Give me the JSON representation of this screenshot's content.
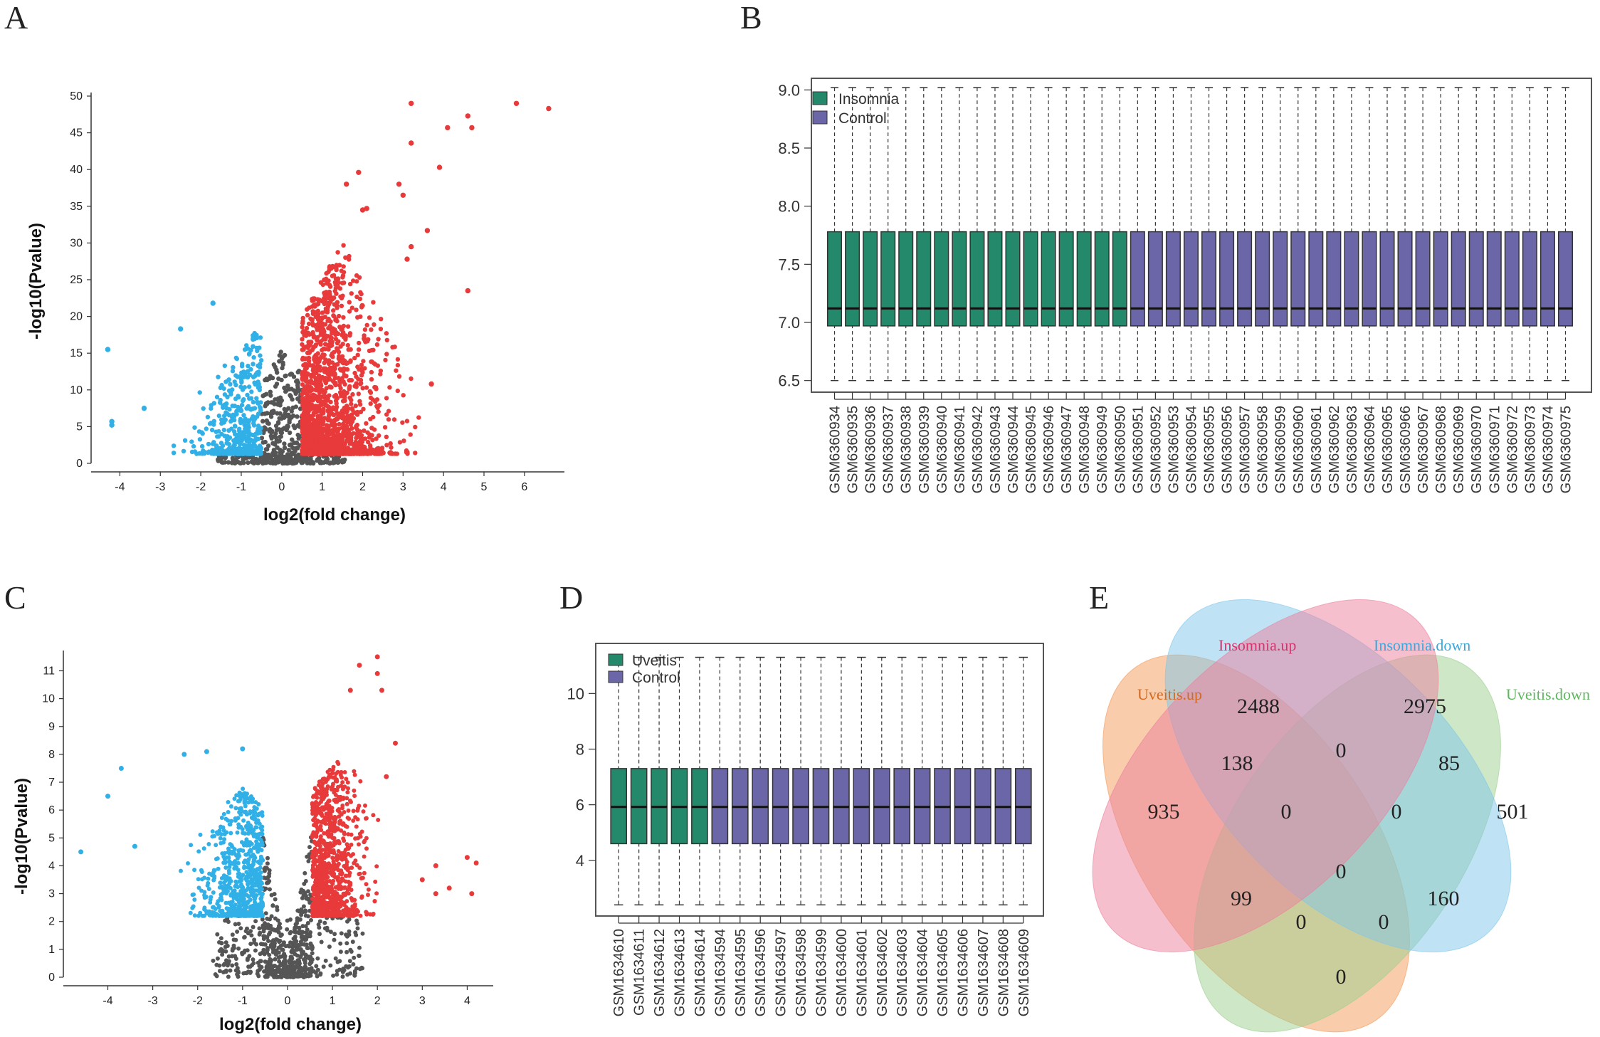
{
  "panel_labels": [
    "A",
    "B",
    "C",
    "D",
    "E"
  ],
  "colors": {
    "up": "#e83a3a",
    "down": "#30b0e6",
    "ns": "#555555",
    "insomnia_box": "#23896a",
    "control_box": "#6b66a8",
    "uveitis_box": "#23896a"
  },
  "chart_data": [
    {
      "id": "A",
      "type": "scatter",
      "title": "",
      "xlabel": "log2(fold change)",
      "ylabel": "-log10(Pvalue)",
      "xlim": [
        -4.5,
        6.9
      ],
      "ylim": [
        0,
        50
      ],
      "xticks": [
        "-4",
        "-3",
        "-2",
        "-1",
        "0",
        "1",
        "2",
        "3",
        "4",
        "5",
        "6"
      ],
      "yticks": [
        "0",
        "5",
        "10",
        "15",
        "20",
        "25",
        "30",
        "35",
        "40",
        "45",
        "50"
      ],
      "series": [
        {
          "name": "up",
          "points": [
            [
              3.2,
              49.0
            ],
            [
              5.8,
              49.0
            ],
            [
              6.6,
              48.3
            ],
            [
              4.6,
              47.3
            ],
            [
              4.7,
              45.7
            ],
            [
              4.1,
              45.7
            ],
            [
              3.2,
              43.6
            ],
            [
              3.9,
              40.3
            ],
            [
              1.9,
              39.6
            ],
            [
              1.6,
              38.0
            ],
            [
              2.9,
              38.0
            ],
            [
              3.0,
              36.5
            ],
            [
              2.1,
              34.7
            ],
            [
              2.0,
              34.5
            ],
            [
              3.6,
              31.7
            ],
            [
              3.2,
              29.5
            ],
            [
              3.1,
              27.8
            ],
            [
              4.6,
              23.5
            ],
            [
              3.7,
              10.8
            ]
          ]
        },
        {
          "name": "down",
          "points": [
            [
              -4.3,
              15.5
            ],
            [
              -4.2,
              5.7
            ],
            [
              -4.2,
              5.2
            ],
            [
              -3.4,
              7.5
            ],
            [
              -2.5,
              18.3
            ],
            [
              -1.7,
              21.8
            ]
          ]
        },
        {
          "name": "ns",
          "points": []
        }
      ]
    },
    {
      "id": "B",
      "type": "boxplot",
      "ylim": [
        6.4,
        9.1
      ],
      "yticks": [
        "6.5",
        "7.0",
        "7.5",
        "8.0",
        "8.5",
        "9.0"
      ],
      "legend": [
        {
          "name": "Insomnia"
        },
        {
          "name": "Control"
        }
      ],
      "stats": {
        "whisker_low": 6.5,
        "q1": 6.97,
        "median": 7.12,
        "q3": 7.78,
        "whisker_high": 9.02
      },
      "samples": [
        {
          "id": "GSM6360934",
          "group": "Insomnia"
        },
        {
          "id": "GSM6360935",
          "group": "Insomnia"
        },
        {
          "id": "GSM6360936",
          "group": "Insomnia"
        },
        {
          "id": "GSM6360937",
          "group": "Insomnia"
        },
        {
          "id": "GSM6360938",
          "group": "Insomnia"
        },
        {
          "id": "GSM6360939",
          "group": "Insomnia"
        },
        {
          "id": "GSM6360940",
          "group": "Insomnia"
        },
        {
          "id": "GSM6360941",
          "group": "Insomnia"
        },
        {
          "id": "GSM6360942",
          "group": "Insomnia"
        },
        {
          "id": "GSM6360943",
          "group": "Insomnia"
        },
        {
          "id": "GSM6360944",
          "group": "Insomnia"
        },
        {
          "id": "GSM6360945",
          "group": "Insomnia"
        },
        {
          "id": "GSM6360946",
          "group": "Insomnia"
        },
        {
          "id": "GSM6360947",
          "group": "Insomnia"
        },
        {
          "id": "GSM6360948",
          "group": "Insomnia"
        },
        {
          "id": "GSM6360949",
          "group": "Insomnia"
        },
        {
          "id": "GSM6360950",
          "group": "Insomnia"
        },
        {
          "id": "GSM6360951",
          "group": "Control"
        },
        {
          "id": "GSM6360952",
          "group": "Control"
        },
        {
          "id": "GSM6360953",
          "group": "Control"
        },
        {
          "id": "GSM6360954",
          "group": "Control"
        },
        {
          "id": "GSM6360955",
          "group": "Control"
        },
        {
          "id": "GSM6360956",
          "group": "Control"
        },
        {
          "id": "GSM6360957",
          "group": "Control"
        },
        {
          "id": "GSM6360958",
          "group": "Control"
        },
        {
          "id": "GSM6360959",
          "group": "Control"
        },
        {
          "id": "GSM6360960",
          "group": "Control"
        },
        {
          "id": "GSM6360961",
          "group": "Control"
        },
        {
          "id": "GSM6360962",
          "group": "Control"
        },
        {
          "id": "GSM6360963",
          "group": "Control"
        },
        {
          "id": "GSM6360964",
          "group": "Control"
        },
        {
          "id": "GSM6360965",
          "group": "Control"
        },
        {
          "id": "GSM6360966",
          "group": "Control"
        },
        {
          "id": "GSM6360967",
          "group": "Control"
        },
        {
          "id": "GSM6360968",
          "group": "Control"
        },
        {
          "id": "GSM6360969",
          "group": "Control"
        },
        {
          "id": "GSM6360970",
          "group": "Control"
        },
        {
          "id": "GSM6360971",
          "group": "Control"
        },
        {
          "id": "GSM6360972",
          "group": "Control"
        },
        {
          "id": "GSM6360973",
          "group": "Control"
        },
        {
          "id": "GSM6360974",
          "group": "Control"
        },
        {
          "id": "GSM6360975",
          "group": "Control"
        }
      ]
    },
    {
      "id": "C",
      "type": "scatter",
      "title": "",
      "xlabel": "log2(fold change)",
      "ylabel": "-log10(Pvalue)",
      "xlim": [
        -4.8,
        4.5
      ],
      "ylim": [
        0,
        11.6
      ],
      "xticks": [
        "-4",
        "-3",
        "-2",
        "-1",
        "0",
        "1",
        "2",
        "3",
        "4"
      ],
      "yticks": [
        "0",
        "1",
        "2",
        "3",
        "4",
        "5",
        "6",
        "7",
        "8",
        "9",
        "10",
        "11"
      ],
      "series": [
        {
          "name": "up",
          "points": [
            [
              2.0,
              11.5
            ],
            [
              1.6,
              11.2
            ],
            [
              2.0,
              10.9
            ],
            [
              1.4,
              10.3
            ],
            [
              2.1,
              10.3
            ],
            [
              2.4,
              8.4
            ],
            [
              2.2,
              7.2
            ],
            [
              3.3,
              4.0
            ],
            [
              3.0,
              3.5
            ],
            [
              3.3,
              3.0
            ],
            [
              4.0,
              4.3
            ],
            [
              4.2,
              4.1
            ],
            [
              4.1,
              3.0
            ],
            [
              3.6,
              3.2
            ]
          ]
        },
        {
          "name": "down",
          "points": [
            [
              -4.6,
              4.5
            ],
            [
              -4.0,
              6.5
            ],
            [
              -3.7,
              7.5
            ],
            [
              -3.4,
              4.7
            ],
            [
              -1.0,
              8.2
            ],
            [
              -1.8,
              8.1
            ],
            [
              -2.3,
              8.0
            ]
          ]
        },
        {
          "name": "ns",
          "points": []
        }
      ]
    },
    {
      "id": "D",
      "type": "boxplot",
      "ylim": [
        2.0,
        11.8
      ],
      "yticks": [
        "4",
        "6",
        "8",
        "10"
      ],
      "legend": [
        {
          "name": "Uveitis"
        },
        {
          "name": "Control"
        }
      ],
      "stats": {
        "whisker_low": 2.4,
        "q1": 4.6,
        "median": 5.92,
        "q3": 7.3,
        "whisker_high": 11.3
      },
      "samples": [
        {
          "id": "GSM1634610",
          "group": "Uveitis"
        },
        {
          "id": "GSM1634611",
          "group": "Uveitis"
        },
        {
          "id": "GSM1634612",
          "group": "Uveitis"
        },
        {
          "id": "GSM1634613",
          "group": "Uveitis"
        },
        {
          "id": "GSM1634614",
          "group": "Uveitis"
        },
        {
          "id": "GSM1634594",
          "group": "Control"
        },
        {
          "id": "GSM1634595",
          "group": "Control"
        },
        {
          "id": "GSM1634596",
          "group": "Control"
        },
        {
          "id": "GSM1634597",
          "group": "Control"
        },
        {
          "id": "GSM1634598",
          "group": "Control"
        },
        {
          "id": "GSM1634599",
          "group": "Control"
        },
        {
          "id": "GSM1634600",
          "group": "Control"
        },
        {
          "id": "GSM1634601",
          "group": "Control"
        },
        {
          "id": "GSM1634602",
          "group": "Control"
        },
        {
          "id": "GSM1634603",
          "group": "Control"
        },
        {
          "id": "GSM1634604",
          "group": "Control"
        },
        {
          "id": "GSM1634605",
          "group": "Control"
        },
        {
          "id": "GSM1634606",
          "group": "Control"
        },
        {
          "id": "GSM1634607",
          "group": "Control"
        },
        {
          "id": "GSM1634608",
          "group": "Control"
        },
        {
          "id": "GSM1634609",
          "group": "Control"
        }
      ]
    },
    {
      "id": "E",
      "type": "venn",
      "sets": [
        {
          "name": "Uveitis.up",
          "color": "#d2691e",
          "fill": "#f39a57"
        },
        {
          "name": "Insomnia.up",
          "color": "#d6336c",
          "fill": "#ec7f9e"
        },
        {
          "name": "Insomnia.down",
          "color": "#3aa7dc",
          "fill": "#7fc6ea"
        },
        {
          "name": "Uveitis.down",
          "color": "#5cb85c",
          "fill": "#9ccf8f"
        }
      ],
      "regions": [
        {
          "sets": [
            "Insomnia.up"
          ],
          "value": 2488
        },
        {
          "sets": [
            "Insomnia.down"
          ],
          "value": 2975
        },
        {
          "sets": [
            "Uveitis.up"
          ],
          "value": 935
        },
        {
          "sets": [
            "Uveitis.down"
          ],
          "value": 501
        },
        {
          "sets": [
            "Uveitis.up",
            "Insomnia.up"
          ],
          "value": 138
        },
        {
          "sets": [
            "Insomnia.up",
            "Insomnia.down"
          ],
          "value": 0
        },
        {
          "sets": [
            "Insomnia.down",
            "Uveitis.down"
          ],
          "value": 85
        },
        {
          "sets": [
            "Uveitis.up",
            "Insomnia.up",
            "Insomnia.down"
          ],
          "value": 0
        },
        {
          "sets": [
            "Insomnia.up",
            "Insomnia.down",
            "Uveitis.down"
          ],
          "value": 0
        },
        {
          "sets": [
            "Uveitis.up",
            "Insomnia.up",
            "Insomnia.down",
            "Uveitis.down"
          ],
          "value": 0
        },
        {
          "sets": [
            "Uveitis.up",
            "Insomnia.down"
          ],
          "value": 99
        },
        {
          "sets": [
            "Insomnia.up",
            "Uveitis.down"
          ],
          "value": 160
        },
        {
          "sets": [
            "Uveitis.up",
            "Insomnia.down",
            "Uveitis.down"
          ],
          "value": 0
        },
        {
          "sets": [
            "Uveitis.up",
            "Insomnia.up",
            "Uveitis.down"
          ],
          "value": 0
        },
        {
          "sets": [
            "Uveitis.up",
            "Uveitis.down"
          ],
          "value": 0
        }
      ]
    }
  ]
}
